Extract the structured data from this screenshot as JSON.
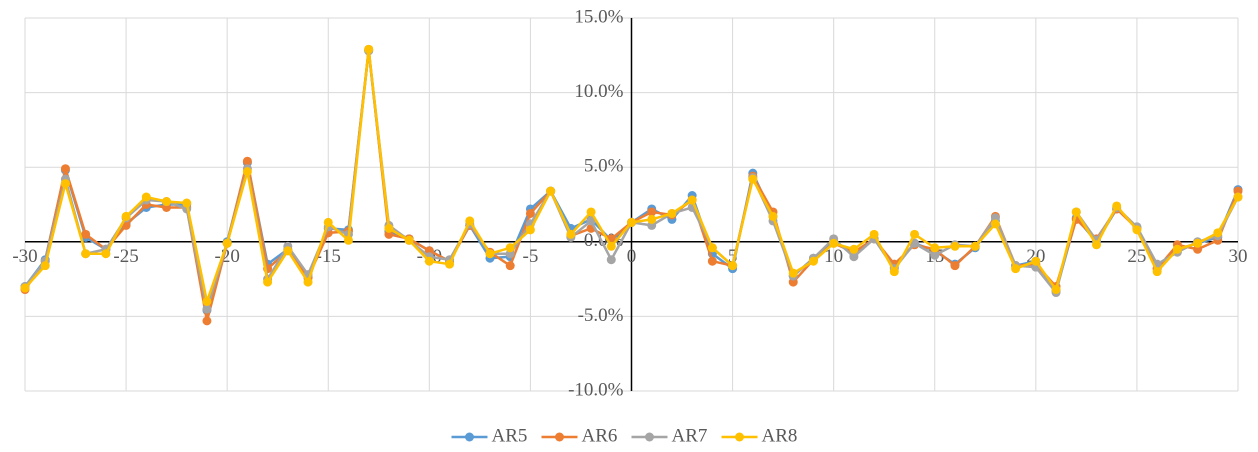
{
  "chart_data": {
    "type": "line",
    "x": [
      -30,
      -29,
      -28,
      -27,
      -26,
      -25,
      -24,
      -23,
      -22,
      -21,
      -20,
      -19,
      -18,
      -17,
      -16,
      -15,
      -14,
      -13,
      -12,
      -11,
      -10,
      -9,
      -8,
      -7,
      -6,
      -5,
      -4,
      -3,
      -2,
      -1,
      0,
      1,
      2,
      3,
      4,
      5,
      6,
      7,
      8,
      9,
      10,
      11,
      12,
      13,
      14,
      15,
      16,
      17,
      18,
      19,
      20,
      21,
      22,
      23,
      24,
      25,
      26,
      27,
      28,
      29,
      30
    ],
    "series": [
      {
        "name": "AR5",
        "color": "#5b9bd5",
        "values": [
          -3.0,
          -1.2,
          4.8,
          0.3,
          -0.5,
          1.2,
          2.3,
          2.5,
          2.5,
          -4.6,
          0.0,
          5.3,
          -1.5,
          -0.5,
          -2.4,
          0.9,
          0.8,
          12.8,
          0.7,
          0.2,
          -0.6,
          -1.3,
          1.1,
          -1.1,
          -1.0,
          2.2,
          3.4,
          0.9,
          1.5,
          0.1,
          1.3,
          2.2,
          1.5,
          3.1,
          -0.8,
          -1.8,
          4.6,
          1.7,
          -2.3,
          -1.1,
          0.0,
          -0.8,
          0.2,
          -1.7,
          -0.1,
          -0.6,
          -1.5,
          -0.4,
          1.4,
          -1.6,
          -1.3,
          -3.3,
          1.6,
          0.0,
          2.2,
          1.0,
          -1.8,
          -0.5,
          -0.1,
          0.3,
          3.5
        ]
      },
      {
        "name": "AR6",
        "color": "#ed7d31",
        "values": [
          -3.2,
          -1.3,
          4.9,
          0.5,
          -0.5,
          1.1,
          2.5,
          2.3,
          2.3,
          -5.3,
          -0.1,
          5.4,
          -1.8,
          -0.6,
          -2.4,
          0.6,
          0.7,
          12.9,
          0.5,
          0.2,
          -0.6,
          -1.3,
          1.1,
          -0.7,
          -1.6,
          1.9,
          3.4,
          0.4,
          0.9,
          0.2,
          1.3,
          2.0,
          1.8,
          2.8,
          -1.3,
          -1.6,
          4.4,
          2.0,
          -2.7,
          -1.2,
          -0.1,
          -0.7,
          0.2,
          -1.5,
          -0.2,
          -0.5,
          -1.6,
          -0.3,
          1.7,
          -1.6,
          -1.5,
          -3.0,
          1.5,
          0.2,
          2.2,
          0.9,
          -1.8,
          -0.2,
          -0.5,
          0.1,
          3.4
        ]
      },
      {
        "name": "AR7",
        "color": "#a5a5a5",
        "values": [
          -3.0,
          -1.3,
          4.2,
          -0.8,
          -0.5,
          1.6,
          2.8,
          2.7,
          2.2,
          -4.5,
          -0.1,
          4.9,
          -2.5,
          -0.3,
          -2.2,
          1.0,
          0.5,
          12.8,
          1.1,
          0.1,
          -1.0,
          -1.2,
          1.2,
          -0.8,
          -0.8,
          1.2,
          3.4,
          0.3,
          1.4,
          -1.2,
          1.3,
          1.1,
          1.9,
          2.3,
          -0.4,
          -1.6,
          4.3,
          1.4,
          -2.3,
          -1.1,
          0.2,
          -1.0,
          0.2,
          -1.8,
          -0.1,
          -0.9,
          -0.2,
          -0.3,
          1.6,
          -1.6,
          -1.7,
          -3.4,
          2.0,
          0.1,
          2.3,
          1.0,
          -1.5,
          -0.7,
          0.0,
          0.4,
          3.0
        ]
      },
      {
        "name": "AR8",
        "color": "#ffc000",
        "values": [
          -3.1,
          -1.6,
          3.9,
          -0.8,
          -0.8,
          1.7,
          3.0,
          2.7,
          2.6,
          -4.0,
          -0.1,
          4.7,
          -2.7,
          -0.6,
          -2.7,
          1.3,
          0.1,
          12.9,
          0.9,
          0.1,
          -1.3,
          -1.5,
          1.4,
          -0.8,
          -0.4,
          0.8,
          3.4,
          0.5,
          2.0,
          -0.3,
          1.3,
          1.5,
          1.9,
          2.8,
          -0.4,
          -1.6,
          4.2,
          1.7,
          -2.1,
          -1.3,
          -0.1,
          -0.5,
          0.5,
          -2.0,
          0.5,
          -0.4,
          -0.3,
          -0.3,
          1.2,
          -1.8,
          -1.3,
          -3.2,
          2.0,
          -0.2,
          2.4,
          0.8,
          -2.0,
          -0.5,
          -0.1,
          0.6,
          3.0
        ]
      }
    ],
    "xlim": [
      -30,
      30
    ],
    "xticks": [
      -30,
      -25,
      -20,
      -15,
      -10,
      -5,
      0,
      5,
      10,
      15,
      20,
      25,
      30
    ],
    "ylim": [
      -10,
      15
    ],
    "yticks": [
      {
        "value": -10,
        "label": "-10.0%"
      },
      {
        "value": -5,
        "label": "-5.0%"
      },
      {
        "value": 0,
        "label": "0.0%"
      },
      {
        "value": 5,
        "label": "5.0%"
      },
      {
        "value": 10,
        "label": "10.0%"
      },
      {
        "value": 15,
        "label": "15.0%"
      }
    ],
    "grid": true,
    "legend": "bottom"
  }
}
